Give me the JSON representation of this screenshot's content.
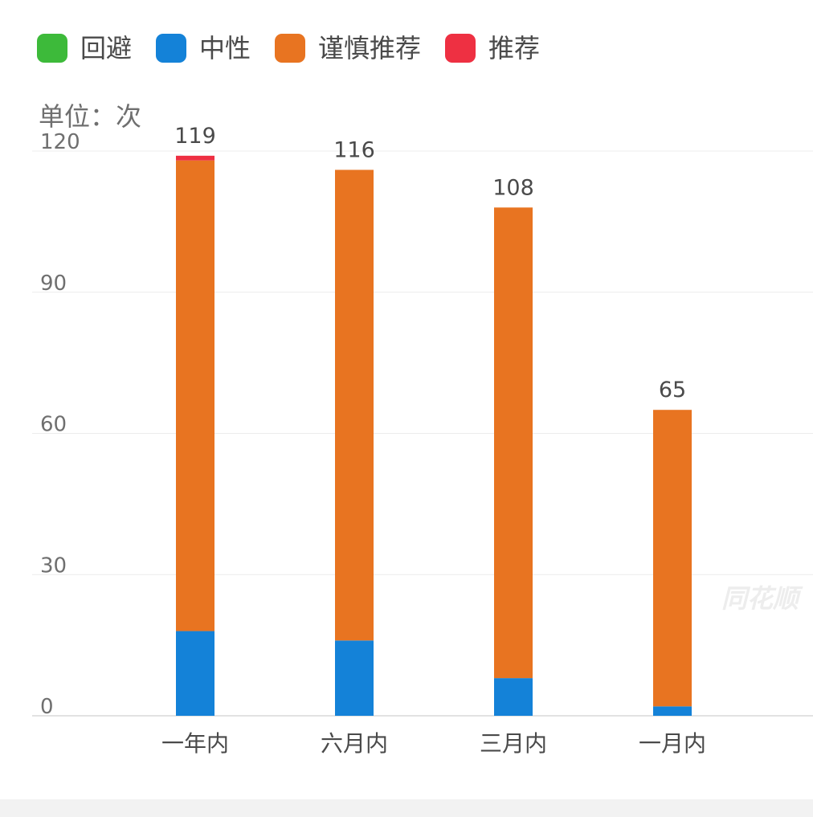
{
  "legend": [
    {
      "label": "回避",
      "color": "#3dba3a"
    },
    {
      "label": "中性",
      "color": "#1482d8"
    },
    {
      "label": "谨慎推荐",
      "color": "#e87421"
    },
    {
      "label": "推荐",
      "color": "#ee3042"
    }
  ],
  "unit_label": "单位：次",
  "watermark": "同花顺",
  "chart_data": {
    "type": "bar",
    "stacked": true,
    "categories": [
      "一年内",
      "六月内",
      "三月内",
      "一月内"
    ],
    "series": [
      {
        "name": "回避",
        "color": "#3dba3a",
        "values": [
          0,
          0,
          0,
          0
        ]
      },
      {
        "name": "中性",
        "color": "#1482d8",
        "values": [
          18,
          16,
          8,
          2
        ]
      },
      {
        "name": "谨慎推荐",
        "color": "#e87421",
        "values": [
          100,
          100,
          100,
          63
        ]
      },
      {
        "name": "推荐",
        "color": "#ee3042",
        "values": [
          1,
          0,
          0,
          0
        ]
      }
    ],
    "totals": [
      119,
      116,
      108,
      65
    ],
    "yticks": [
      0,
      30,
      60,
      90,
      120
    ],
    "ylim": [
      0,
      120
    ],
    "grid": true,
    "legend_position": "top-left"
  }
}
